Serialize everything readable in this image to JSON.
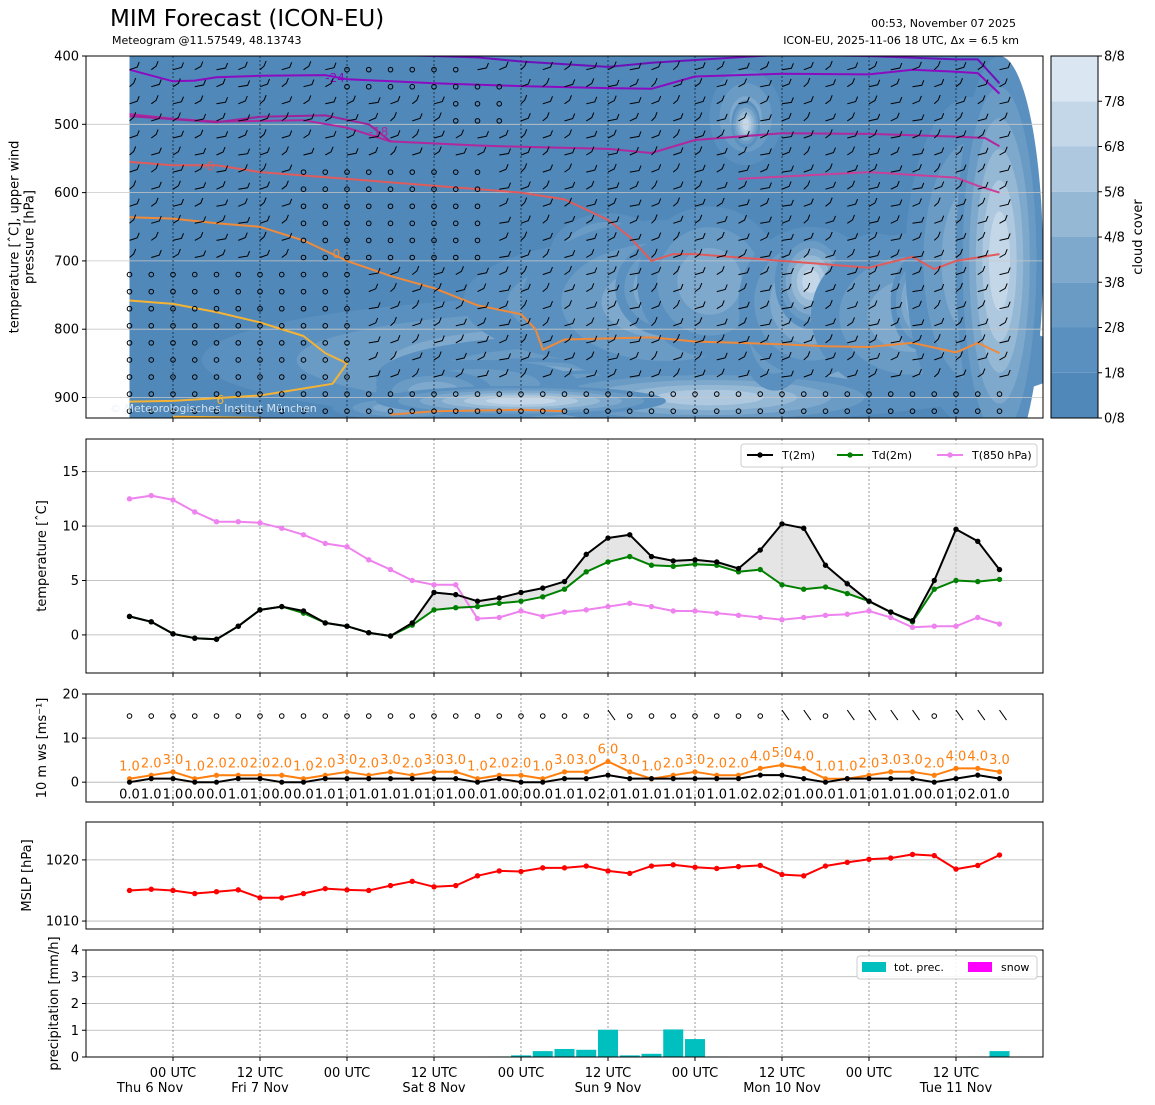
{
  "header": {
    "title": "MIM Forecast (ICON-EU)",
    "subtitle": "Meteogram @11.57549, 48.13743",
    "timestamp": "00:53, November 07 2025",
    "model_info": "ICON-EU, 2025-11-06 18 UTC, Δx = 6.5 km",
    "watermark": "© Meteorologisches Institut München"
  },
  "colors": {
    "cloud_base": "#4f88b9",
    "t2m": "#000000",
    "td2m": "#008000",
    "t850": "#ee82ee",
    "wind_mean": "#000000",
    "wind_gust": "#ff7f0e",
    "mslp": "#ff0000",
    "precip": "#00bfbf",
    "snow": "#ff00ff"
  },
  "chart_data": [
    {
      "name": "upper-air-panel",
      "type": "heatmap",
      "ylabel": "temperature [$^\\circ$C], upper wind\npressure [hPa]",
      "ylabel_line1": "temperature [ˆC], upper wind",
      "ylabel_line2": "pressure [hPa]",
      "ylim": [
        930,
        400
      ],
      "yticks": [
        "400",
        "500",
        "600",
        "700",
        "800",
        "900"
      ],
      "colorbar": {
        "label": "cloud cover",
        "ticks": [
          "0/8",
          "1/8",
          "2/8",
          "3/8",
          "4/8",
          "5/8",
          "6/8",
          "7/8",
          "8/8"
        ],
        "colors": [
          "#4f88b9",
          "#5a90bf",
          "#6a9bc5",
          "#7ea8cc",
          "#95b8d5",
          "#adc8df",
          "#c3d7e8",
          "#dae6f1",
          "#eef4f9",
          "#f7fafd"
        ]
      },
      "isotherms": [
        {
          "label": "-24",
          "color": "#8b0cc0"
        },
        {
          "label": "-18",
          "color": "#b0279e"
        },
        {
          "label": "-6",
          "color": "#e05c5c"
        },
        {
          "label": "0",
          "color": "#f08a3b"
        },
        {
          "label": "6",
          "color": "#f5b335"
        }
      ]
    },
    {
      "name": "temperature-panel",
      "type": "line",
      "ylabel": "temperature [ˆC]",
      "ylim": [
        -3.5,
        18
      ],
      "yticks": [
        "0",
        "5",
        "10",
        "15"
      ],
      "x_hours": [
        0,
        3,
        6,
        9,
        12,
        15,
        18,
        21,
        24,
        27,
        30,
        33,
        36,
        39,
        42,
        45,
        48,
        51,
        54,
        57,
        60,
        63,
        66,
        69,
        72,
        75,
        78,
        81,
        84,
        87,
        90,
        93,
        96,
        99,
        102,
        105,
        108,
        111,
        114,
        117,
        120
      ],
      "series": [
        {
          "name": "T(2m)",
          "color": "#000000",
          "values": [
            1.7,
            1.2,
            0.1,
            -0.3,
            -0.4,
            0.8,
            2.3,
            2.6,
            2.2,
            1.1,
            0.8,
            0.2,
            -0.1,
            1.1,
            3.9,
            3.7,
            3.1,
            3.4,
            3.9,
            4.3,
            4.9,
            7.4,
            8.9,
            9.2,
            7.2,
            6.8,
            6.9,
            6.7,
            6.1,
            7.8,
            10.2,
            9.8,
            6.4,
            4.7,
            3.1,
            2.1,
            1.3,
            5.0,
            9.7,
            8.6,
            6.0
          ]
        },
        {
          "name": "Td(2m)",
          "color": "#008000",
          "values": [
            1.7,
            1.2,
            0.1,
            -0.3,
            -0.4,
            0.8,
            2.3,
            2.6,
            2.0,
            1.1,
            0.8,
            0.2,
            -0.1,
            0.9,
            2.3,
            2.5,
            2.6,
            2.9,
            3.1,
            3.5,
            4.2,
            5.8,
            6.7,
            7.2,
            6.4,
            6.3,
            6.5,
            6.4,
            5.8,
            6.0,
            4.6,
            4.2,
            4.4,
            3.8,
            3.1,
            2.1,
            1.2,
            4.2,
            5.0,
            4.9,
            5.1
          ]
        },
        {
          "name": "T(850 hPa)",
          "color": "#ee82ee",
          "values": [
            12.5,
            12.8,
            12.4,
            11.3,
            10.4,
            10.4,
            10.3,
            9.8,
            9.2,
            8.4,
            8.1,
            6.9,
            6.0,
            5.0,
            4.6,
            4.6,
            1.5,
            1.6,
            2.2,
            1.7,
            2.1,
            2.3,
            2.6,
            2.9,
            2.6,
            2.2,
            2.2,
            2.0,
            1.8,
            1.6,
            1.4,
            1.6,
            1.8,
            1.9,
            2.2,
            1.6,
            0.7,
            0.8,
            0.8,
            1.6,
            1.0
          ]
        }
      ]
    },
    {
      "name": "wind-panel",
      "type": "line",
      "ylabel": "10 m ws [ms⁻¹]",
      "ylim": [
        -4.5,
        20
      ],
      "yticks": [
        "0",
        "10",
        "20"
      ],
      "series": [
        {
          "name": "10 m ws",
          "color": "#000000",
          "values": [
            0,
            1,
            1,
            0,
            0,
            1,
            1,
            0,
            0,
            1,
            1,
            1,
            1,
            1,
            1,
            1,
            0,
            1,
            0,
            0,
            1,
            1,
            2,
            1,
            1,
            1,
            1,
            1,
            1,
            2,
            2,
            1,
            0,
            1,
            1,
            1,
            1,
            0,
            1,
            2,
            1
          ]
        },
        {
          "name": "gust",
          "color": "#ff7f0e",
          "values": [
            1,
            2,
            3,
            1,
            2,
            2,
            2,
            2,
            1,
            2,
            3,
            2,
            3,
            2,
            3,
            3,
            1,
            2,
            2,
            1,
            3,
            3,
            6,
            3,
            1,
            2,
            3,
            2,
            2,
            4,
            5,
            4,
            1,
            1,
            2,
            3,
            3,
            2,
            4,
            4,
            3
          ]
        }
      ],
      "labels_mean": [
        "0.0",
        "1.0",
        "1.0",
        "0.0",
        "0.0",
        "1.0",
        "1.0",
        "0.0",
        "0.0",
        "1.0",
        "1.0",
        "1.0",
        "1.0",
        "1.0",
        "1.0",
        "1.0",
        "0.0",
        "1.0",
        "0.0",
        "0.0",
        "1.0",
        "1.0",
        "2.0",
        "1.0",
        "1.0",
        "1.0",
        "1.0",
        "1.0",
        "1.0",
        "2.0",
        "2.0",
        "1.0",
        "0.0",
        "1.0",
        "1.0",
        "1.0",
        "1.0",
        "0.0",
        "1.0",
        "2.0",
        "1.0"
      ],
      "labels_gust": [
        "1.0",
        "2.0",
        "3.0",
        "1.0",
        "2.0",
        "2.0",
        "2.0",
        "2.0",
        "1.0",
        "2.0",
        "3.0",
        "2.0",
        "3.0",
        "2.0",
        "3.0",
        "3.0",
        "1.0",
        "2.0",
        "2.0",
        "1.0",
        "3.0",
        "3.0",
        "6.0",
        "3.0",
        "1.0",
        "2.0",
        "3.0",
        "2.0",
        "2.0",
        "4.0",
        "5.0",
        "4.0",
        "1.0",
        "1.0",
        "2.0",
        "3.0",
        "3.0",
        "2.0",
        "4.0",
        "4.0",
        "3.0"
      ]
    },
    {
      "name": "mslp-panel",
      "type": "line",
      "ylabel": "MSLP [hPa]",
      "ylim": [
        1008.7,
        1026.2
      ],
      "yticks": [
        "1010",
        "1020"
      ],
      "series": [
        {
          "name": "MSLP",
          "color": "#ff0000",
          "values": [
            1015.0,
            1015.2,
            1015.0,
            1014.5,
            1014.8,
            1015.1,
            1013.8,
            1013.8,
            1014.5,
            1015.3,
            1015.1,
            1015.0,
            1015.8,
            1016.5,
            1015.6,
            1015.8,
            1017.4,
            1018.2,
            1018.1,
            1018.7,
            1018.7,
            1019.0,
            1018.2,
            1017.8,
            1019.0,
            1019.2,
            1018.8,
            1018.6,
            1018.9,
            1019.1,
            1017.6,
            1017.4,
            1019.0,
            1019.6,
            1020.1,
            1020.3,
            1020.9,
            1020.7,
            1018.5,
            1019.1,
            1020.8
          ]
        }
      ]
    },
    {
      "name": "precip-panel",
      "type": "bar",
      "ylabel": "precipitation [mm/h]",
      "ylim": [
        0,
        4
      ],
      "yticks": [
        "0",
        "1",
        "2",
        "3",
        "4"
      ],
      "legend": [
        "tot. prec.",
        "snow"
      ],
      "values": [
        0,
        0,
        0,
        0,
        0,
        0,
        0,
        0,
        0,
        0,
        0,
        0,
        0,
        0,
        0,
        0,
        0,
        0.02,
        0.06,
        0.22,
        0.3,
        0.27,
        1.02,
        0.06,
        0.12,
        1.03,
        0.67,
        0.02,
        0,
        0,
        0.01,
        0,
        0,
        0,
        0,
        0,
        0,
        0,
        0,
        0.02,
        0.22
      ]
    }
  ],
  "x_axis": {
    "ticks": [
      {
        "hour": 6,
        "label": "00 UTC",
        "day": "Thu 6 Nov"
      },
      {
        "hour": 18,
        "label": "12 UTC",
        "day": "Fri 7 Nov"
      },
      {
        "hour": 30,
        "label": "00 UTC",
        "day": ""
      },
      {
        "hour": 42,
        "label": "12 UTC",
        "day": "Sat 8 Nov"
      },
      {
        "hour": 54,
        "label": "00 UTC",
        "day": ""
      },
      {
        "hour": 66,
        "label": "12 UTC",
        "day": "Sun 9 Nov"
      },
      {
        "hour": 78,
        "label": "00 UTC",
        "day": ""
      },
      {
        "hour": 90,
        "label": "12 UTC",
        "day": "Mon 10 Nov"
      },
      {
        "hour": 102,
        "label": "00 UTC",
        "day": ""
      },
      {
        "hour": 114,
        "label": "12 UTC",
        "day": "Tue 11 Nov"
      }
    ]
  }
}
